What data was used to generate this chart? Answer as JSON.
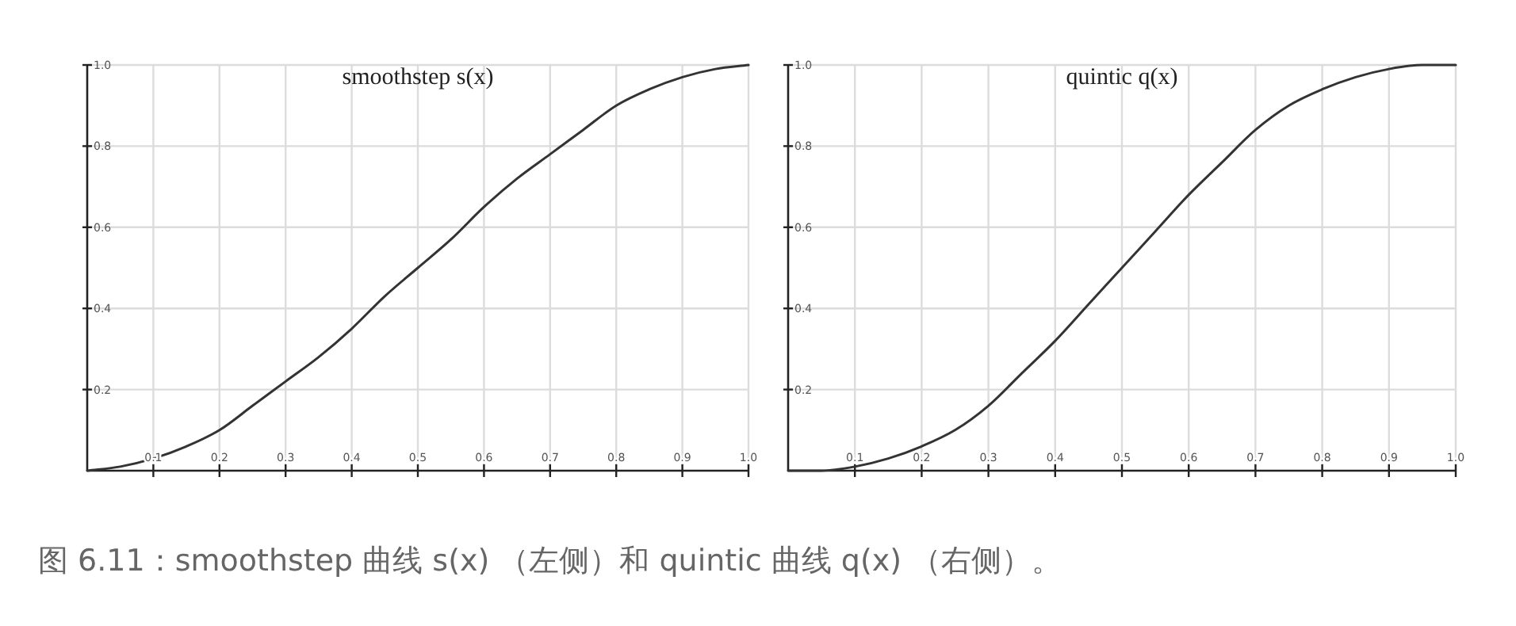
{
  "chart_data": [
    {
      "type": "line",
      "title": "smoothstep s(x)",
      "x": [
        0,
        0.05,
        0.1,
        0.15,
        0.2,
        0.25,
        0.3,
        0.35,
        0.4,
        0.45,
        0.5,
        0.55,
        0.6,
        0.65,
        0.7,
        0.75,
        0.8,
        0.85,
        0.9,
        0.95,
        1
      ],
      "series": [
        {
          "color": "#333333",
          "values": [
            0,
            0.01,
            0.03,
            0.06,
            0.1,
            0.16,
            0.22,
            0.28,
            0.35,
            0.43,
            0.5,
            0.57,
            0.65,
            0.72,
            0.78,
            0.84,
            0.9,
            0.94,
            0.97,
            0.99,
            1
          ]
        }
      ],
      "xlim": [
        0,
        1
      ],
      "ylim": [
        0,
        1
      ],
      "xticks": [
        0.1,
        0.2,
        0.3,
        0.4,
        0.5,
        0.6,
        0.7,
        0.8,
        0.9,
        {
          "value": 1,
          "label": "1.0"
        }
      ],
      "yticks": [
        0.2,
        0.4,
        0.6,
        0.8,
        {
          "value": 1,
          "label": "1.0"
        }
      ],
      "grid": true,
      "marker": "none",
      "line_style": "solid",
      "annotations": [
        "图 6.11：smoothstep 曲线 s(x) （左侧）和 quintic 曲线 q(x) （右侧）。"
      ]
    },
    {
      "type": "line",
      "title": "quintic q(x)",
      "x": [
        0,
        0.05,
        0.1,
        0.15,
        0.2,
        0.25,
        0.3,
        0.35,
        0.4,
        0.45,
        0.5,
        0.55,
        0.6,
        0.65,
        0.7,
        0.75,
        0.8,
        0.85,
        0.9,
        0.95,
        1
      ],
      "series": [
        {
          "color": "#333333",
          "values": [
            0,
            0.0,
            0.01,
            0.03,
            0.06,
            0.1,
            0.16,
            0.24,
            0.32,
            0.41,
            0.5,
            0.59,
            0.68,
            0.76,
            0.84,
            0.9,
            0.94,
            0.97,
            0.99,
            1.0,
            1
          ]
        }
      ],
      "xlim": [
        0,
        1
      ],
      "ylim": [
        0,
        1
      ],
      "xticks": [
        0.1,
        0.2,
        0.3,
        0.4,
        0.5,
        0.6,
        0.7,
        0.8,
        0.9,
        {
          "value": 1,
          "label": "1.0"
        }
      ],
      "yticks": [
        0.2,
        0.4,
        0.6,
        0.8,
        {
          "value": 1,
          "label": "1.0"
        }
      ],
      "grid": true,
      "marker": "none",
      "line_style": "solid"
    }
  ]
}
